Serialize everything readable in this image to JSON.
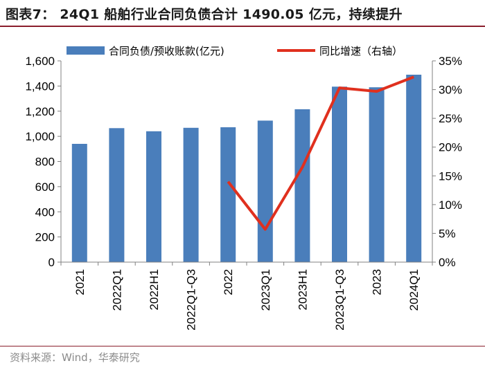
{
  "page": {
    "title": "图表7： 24Q1 船舶行业合同负债合计 1490.05 亿元，持续提升",
    "source": "资料来源：Wind，华泰研究"
  },
  "colors": {
    "bar": "#4a7ebb",
    "line": "#e0301e",
    "rule": "#8a1d2b",
    "axis": "#808080"
  },
  "chart_data": {
    "type": "bar",
    "categories": [
      "2021",
      "2022Q1",
      "2022H1",
      "2022Q1-Q3",
      "2022",
      "2023Q1",
      "2023H1",
      "2023Q1-Q3",
      "2023",
      "2024Q1"
    ],
    "series": [
      {
        "name": "合同负债/预收账款(亿元)",
        "type": "bar",
        "axis": "left",
        "values": [
          940,
          1065,
          1040,
          1068,
          1072,
          1125,
          1215,
          1395,
          1390,
          1490.05
        ]
      },
      {
        "name": "同比增速（右轴）",
        "type": "line",
        "axis": "right",
        "values": [
          null,
          null,
          null,
          null,
          14.0,
          5.7,
          16.5,
          30.3,
          29.7,
          32.2
        ]
      }
    ],
    "y_left": {
      "lim": [
        0,
        1600
      ],
      "ticks": [
        0,
        200,
        400,
        600,
        800,
        1000,
        1200,
        1400,
        1600
      ],
      "tick_labels": [
        "0",
        "200",
        "400",
        "600",
        "800",
        "1,000",
        "1,200",
        "1,400",
        "1,600"
      ]
    },
    "y_right": {
      "lim": [
        0,
        35
      ],
      "ticks": [
        0,
        5,
        10,
        15,
        20,
        25,
        30,
        35
      ],
      "tick_labels": [
        "0%",
        "5%",
        "10%",
        "15%",
        "20%",
        "25%",
        "30%",
        "35%"
      ]
    },
    "grid": false,
    "legend": "top"
  }
}
